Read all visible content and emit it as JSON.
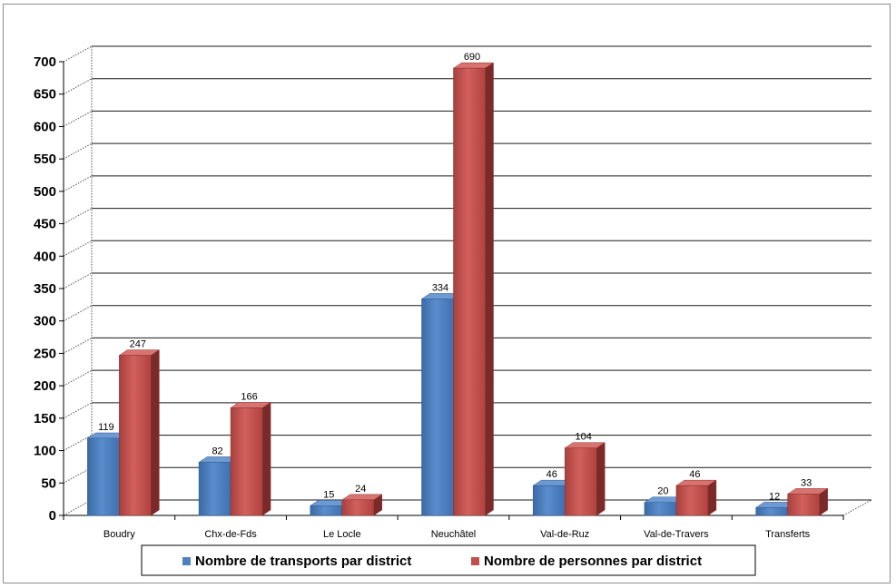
{
  "chart_data": {
    "type": "bar",
    "title": "",
    "xlabel": "",
    "ylabel": "",
    "ylim": [
      0,
      700
    ],
    "ytick_step": 50,
    "grid": true,
    "legend_position": "bottom",
    "categories": [
      "Boudry",
      "Chx-de-Fds",
      "Le Locle",
      "Neuchâtel",
      "Val-de-Ruz",
      "Val-de-Travers",
      "Transferts"
    ],
    "series": [
      {
        "name": "Nombre de transports par district",
        "color": "#4f81bd",
        "values": [
          119,
          82,
          15,
          334,
          46,
          20,
          12
        ]
      },
      {
        "name": "Nombre de personnes par district",
        "color": "#c0504d",
        "values": [
          247,
          166,
          24,
          690,
          104,
          46,
          33
        ]
      }
    ]
  }
}
